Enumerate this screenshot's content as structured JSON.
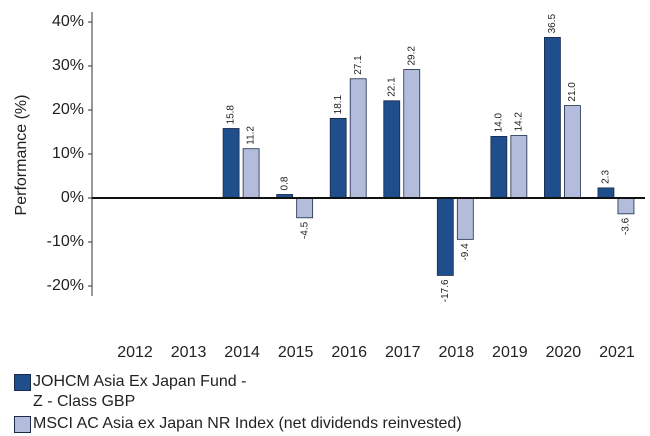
{
  "chart_data": {
    "type": "bar",
    "ylabel": "Performance (%)",
    "categories": [
      "2012",
      "2013",
      "2014",
      "2015",
      "2016",
      "2017",
      "2018",
      "2019",
      "2020",
      "2021"
    ],
    "series": [
      {
        "name": "JOHCM Asia Ex Japan Fund - Z - Class GBP",
        "color": "#1f4e8c",
        "values": [
          null,
          null,
          15.8,
          0.8,
          18.1,
          22.1,
          -17.6,
          14.0,
          36.5,
          2.3
        ],
        "value_labels": [
          null,
          null,
          "15.8",
          "0.8",
          "18.1",
          "22.1",
          "-17.6",
          "14.0",
          "36.5",
          "2.3"
        ]
      },
      {
        "name": "MSCI AC Asia ex Japan NR Index (net dividends reinvested)",
        "color": "#b4bcdb",
        "values": [
          null,
          null,
          11.2,
          -4.5,
          27.1,
          29.2,
          -9.4,
          14.2,
          21.0,
          -3.6
        ],
        "value_labels": [
          null,
          null,
          "11.2",
          "-4.5",
          "27.1",
          "29.2",
          "-9.4",
          "14.2",
          "21.0",
          "-3.6"
        ]
      }
    ],
    "ylim": [
      -20,
      40
    ],
    "yticks": [
      {
        "value": 40,
        "label": "40%"
      },
      {
        "value": 30,
        "label": "30%"
      },
      {
        "value": 20,
        "label": "20%"
      },
      {
        "value": 10,
        "label": "10%"
      },
      {
        "value": 0,
        "label": "0%"
      },
      {
        "value": -10,
        "label": "-10%"
      },
      {
        "value": -20,
        "label": "-20%"
      }
    ],
    "grid": false
  }
}
